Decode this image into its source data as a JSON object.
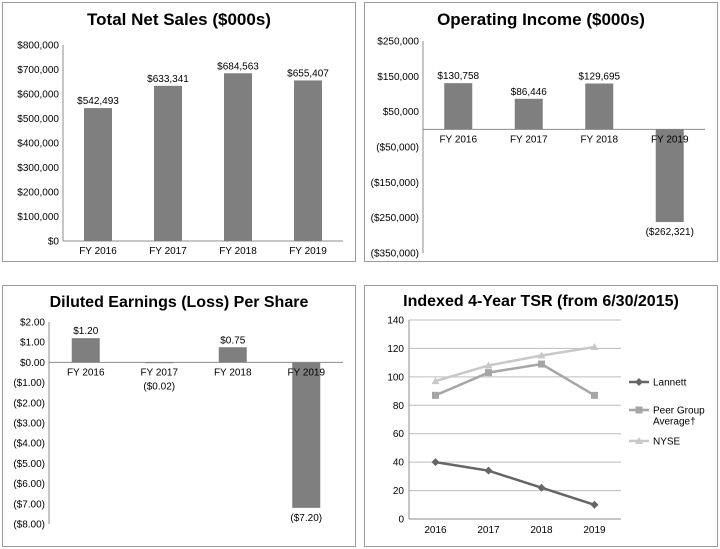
{
  "chart_data": [
    {
      "id": "sales",
      "type": "bar",
      "title": "Total Net Sales ($000s)",
      "categories": [
        "FY 2016",
        "FY 2017",
        "FY 2018",
        "FY 2019"
      ],
      "values": [
        542493,
        633341,
        684563,
        655407
      ],
      "data_labels": [
        "$542,493",
        "$633,341",
        "$684,563",
        "$655,407"
      ],
      "y_ticks": [
        0,
        100000,
        200000,
        300000,
        400000,
        500000,
        600000,
        700000,
        800000
      ],
      "y_tick_labels": [
        "$0",
        "$100,000",
        "$200,000",
        "$300,000",
        "$400,000",
        "$500,000",
        "$600,000",
        "$700,000",
        "$800,000"
      ],
      "ylim": [
        0,
        800000
      ],
      "grid": false,
      "bar_color": "#7f7f7f"
    },
    {
      "id": "opinc",
      "type": "bar",
      "title": "Operating Income ($000s)",
      "categories": [
        "FY 2016",
        "FY 2017",
        "FY 2018",
        "FY 2019"
      ],
      "values": [
        130758,
        86446,
        129695,
        -262321
      ],
      "data_labels": [
        "$130,758",
        "$86,446",
        "$129,695",
        "($262,321)"
      ],
      "y_ticks": [
        250000,
        150000,
        50000,
        -50000,
        -150000,
        -250000,
        -350000
      ],
      "y_tick_labels": [
        "$250,000",
        "$150,000",
        "$50,000",
        "($50,000)",
        "($150,000)",
        "($250,000)",
        "($350,000)"
      ],
      "ylim": [
        -350000,
        250000
      ],
      "grid": false,
      "bar_color": "#7f7f7f"
    },
    {
      "id": "eps",
      "type": "bar",
      "title": "Diluted Earnings (Loss) Per Share",
      "categories": [
        "FY 2016",
        "FY 2017",
        "FY 2018",
        "FY 2019"
      ],
      "values": [
        1.2,
        -0.02,
        0.75,
        -7.2
      ],
      "data_labels": [
        "$1.20",
        "($0.02)",
        "$0.75",
        "($7.20)"
      ],
      "y_ticks": [
        2,
        1,
        0,
        -1,
        -2,
        -3,
        -4,
        -5,
        -6,
        -7,
        -8
      ],
      "y_tick_labels": [
        "$2.00",
        "$1.00",
        "$0.00",
        "($1.00)",
        "($2.00)",
        "($3.00)",
        "($4.00)",
        "($5.00)",
        "($6.00)",
        "($7.00)",
        "($8.00)"
      ],
      "ylim": [
        -8,
        2
      ],
      "grid": false,
      "bar_color": "#7f7f7f"
    },
    {
      "id": "tsr",
      "type": "line",
      "title": "Indexed 4-Year TSR (from 6/30/2015)",
      "x": [
        "2016",
        "2017",
        "2018",
        "2019"
      ],
      "series": [
        {
          "name": "Lannett",
          "values": [
            40,
            34,
            22,
            10
          ],
          "color": "#666666",
          "marker": "diamond"
        },
        {
          "name": "Peer Group Average†",
          "values": [
            87,
            103,
            109,
            87
          ],
          "color": "#a6a6a6",
          "marker": "square"
        },
        {
          "name": "NYSE",
          "values": [
            97,
            108,
            115,
            121
          ],
          "color": "#c8c8c8",
          "marker": "triangle"
        }
      ],
      "y_ticks": [
        0,
        20,
        40,
        60,
        80,
        100,
        120,
        140
      ],
      "ylim": [
        0,
        140
      ],
      "grid": true,
      "legend": "right"
    }
  ]
}
